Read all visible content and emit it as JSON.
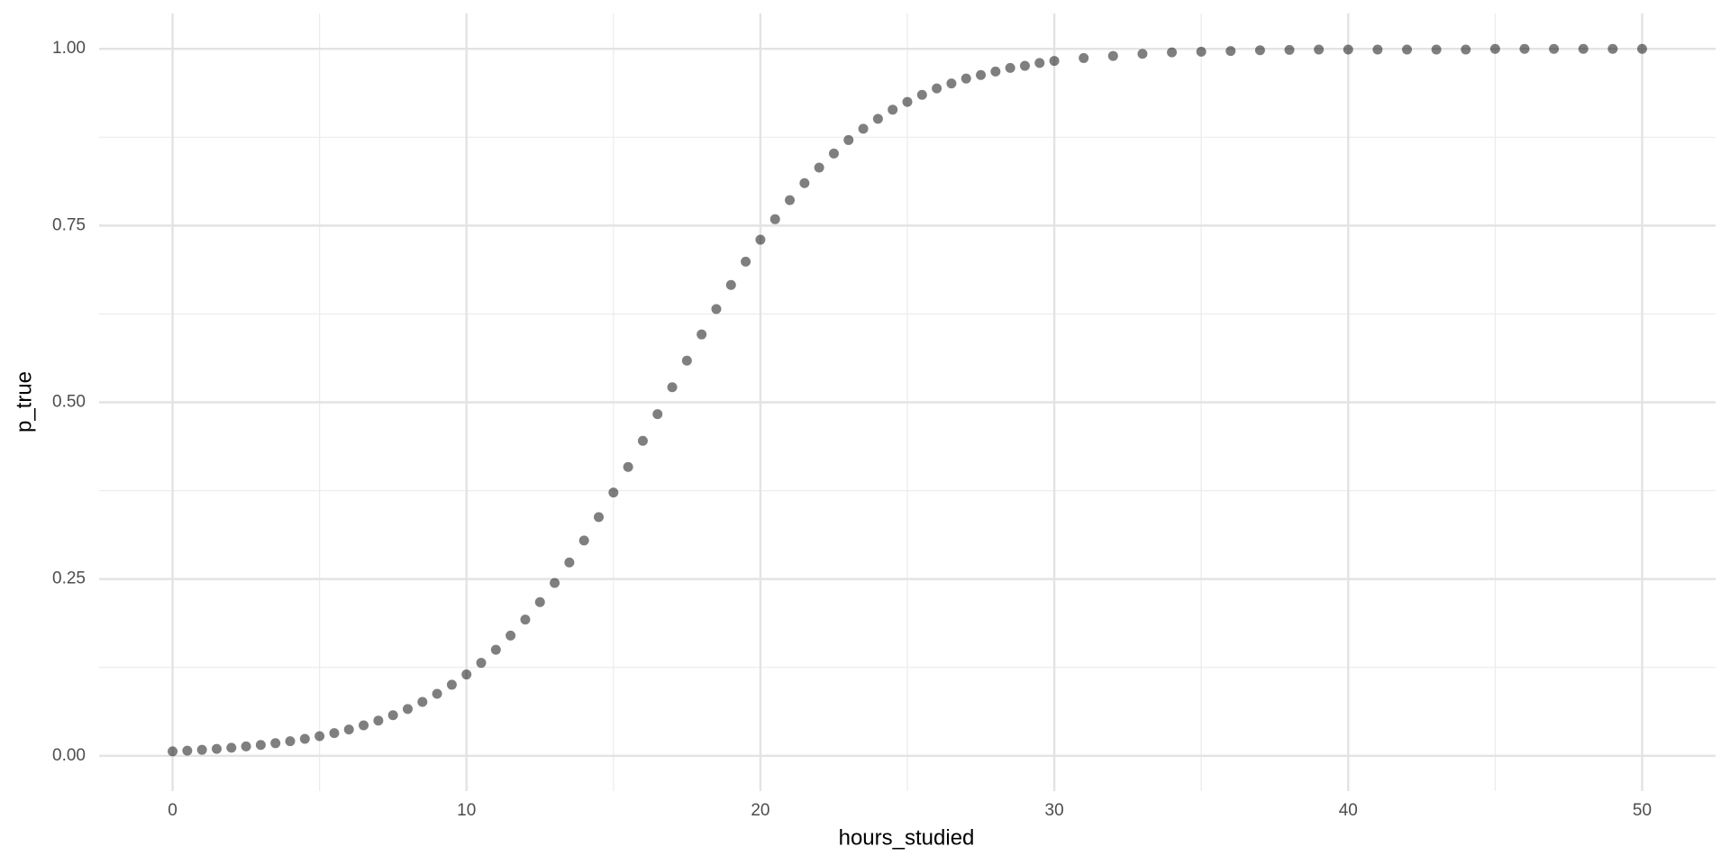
{
  "chart_data": {
    "type": "scatter",
    "x_label": "hours_studied",
    "y_label": "p_true",
    "xlim": [
      -2.5,
      52.5
    ],
    "ylim": [
      -0.05,
      1.05
    ],
    "xticks": [
      0,
      10,
      20,
      30,
      40,
      50
    ],
    "yticks": [
      {
        "value": 0,
        "label": "0.00"
      },
      {
        "value": 0.25,
        "label": "0.25"
      },
      {
        "value": 0.5,
        "label": "0.50"
      },
      {
        "value": 0.75,
        "label": "0.75"
      },
      {
        "value": 1,
        "label": "1.00"
      }
    ],
    "x_minor_ticks": [
      5,
      15,
      25,
      35,
      45
    ],
    "y_minor_ticks": [
      0.125,
      0.375,
      0.625,
      0.875
    ],
    "grid": true,
    "color": "#000000",
    "opacity": 0.5,
    "x": [
      0,
      0.5,
      1,
      1.5,
      2,
      2.5,
      3,
      3.5,
      4,
      4.5,
      5,
      5.5,
      6,
      6.5,
      7,
      7.5,
      8,
      8.5,
      9,
      9.5,
      10,
      10.5,
      11,
      11.5,
      12,
      12.5,
      13,
      13.5,
      14,
      14.5,
      15,
      15.5,
      16,
      16.5,
      17,
      17.5,
      18,
      18.5,
      19,
      19.5,
      20,
      20.5,
      21,
      21.5,
      22,
      22.5,
      23,
      23.5,
      24,
      24.5,
      25,
      25.5,
      26,
      26.5,
      27,
      27.5,
      28,
      28.5,
      29,
      29.5,
      30,
      31,
      32,
      33,
      34,
      35,
      36,
      37,
      38,
      39,
      40,
      41,
      42,
      43,
      44,
      45,
      46,
      47,
      48,
      49,
      50
    ],
    "values": [
      0.0062,
      0.0072,
      0.0084,
      0.0098,
      0.0113,
      0.0132,
      0.0153,
      0.0178,
      0.0206,
      0.0239,
      0.0277,
      0.0321,
      0.0372,
      0.043,
      0.0498,
      0.0574,
      0.0662,
      0.0762,
      0.0876,
      0.1005,
      0.115,
      0.1314,
      0.1499,
      0.17,
      0.1927,
      0.2174,
      0.2444,
      0.2734,
      0.3045,
      0.3376,
      0.3724,
      0.4085,
      0.4455,
      0.4833,
      0.5213,
      0.559,
      0.596,
      0.632,
      0.666,
      0.699,
      0.73,
      0.759,
      0.786,
      0.81,
      0.832,
      0.852,
      0.871,
      0.887,
      0.901,
      0.914,
      0.925,
      0.935,
      0.944,
      0.951,
      0.958,
      0.963,
      0.968,
      0.973,
      0.976,
      0.98,
      0.983,
      0.987,
      0.99,
      0.993,
      0.995,
      0.996,
      0.997,
      0.998,
      0.9985,
      0.999,
      0.999,
      0.999,
      0.999,
      0.999,
      0.999,
      1,
      1,
      1,
      1,
      1,
      1
    ]
  }
}
